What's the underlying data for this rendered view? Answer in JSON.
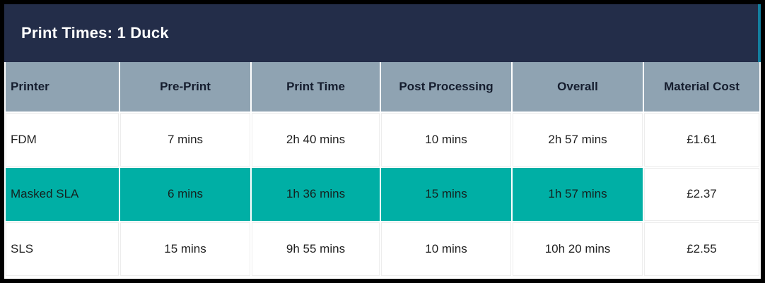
{
  "title": "Print Times: 1 Duck",
  "colors": {
    "title_bar_bg": "#232D49",
    "title_text": "#FFFFFF",
    "header_bg": "#8FA3B2",
    "header_text": "#151D2E",
    "highlight_row_bg": "#00AFA5",
    "body_text": "#1F1F1F",
    "frame_border": "#000000",
    "title_accent_strip": "#137FA0"
  },
  "chart_data": {
    "type": "table",
    "title": "Print Times: 1 Duck",
    "columns": [
      "Printer",
      "Pre-Print",
      "Print Time",
      "Post Processing",
      "Overall",
      "Material Cost"
    ],
    "rows": [
      [
        "FDM",
        "7 mins",
        "2h 40 mins",
        "10 mins",
        "2h 57 mins",
        "£1.61"
      ],
      [
        "Masked SLA",
        "6 mins",
        "1h 36 mins",
        "15 mins",
        "1h 57 mins",
        "£2.37"
      ],
      [
        "SLS",
        "15 mins",
        "9h 55 mins",
        "10 mins",
        "10h 20 mins",
        "£2.55"
      ]
    ],
    "highlighted_row": "Masked SLA",
    "highlight_note": "Masked SLA row cells highlighted teal except the Material Cost cell, which stays white",
    "layout": {
      "header_align": "center",
      "first_column_align": "left",
      "grid": "2px light separators"
    }
  }
}
